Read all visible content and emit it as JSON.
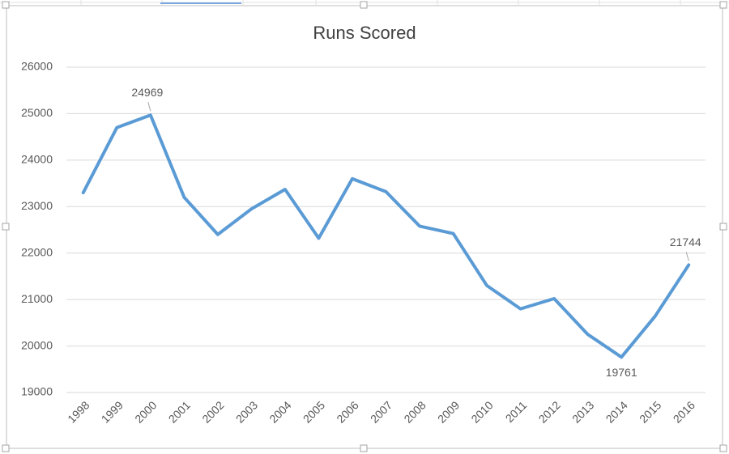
{
  "chart_data": {
    "type": "line",
    "title": "Runs Scored",
    "categories": [
      "1998",
      "1999",
      "2000",
      "2001",
      "2002",
      "2003",
      "2004",
      "2005",
      "2006",
      "2007",
      "2008",
      "2009",
      "2010",
      "2011",
      "2012",
      "2013",
      "2014",
      "2015",
      "2016"
    ],
    "series": [
      {
        "name": "Runs Scored",
        "color": "#5b9bd5",
        "values": [
          23300,
          24700,
          24969,
          23200,
          22400,
          22950,
          23370,
          22320,
          23600,
          23320,
          22580,
          22420,
          21300,
          20800,
          21020,
          20250,
          19761,
          20640,
          21744
        ],
        "value_labels": [
          null,
          null,
          "24969",
          null,
          null,
          null,
          null,
          null,
          null,
          null,
          null,
          null,
          null,
          null,
          null,
          null,
          "19761",
          null,
          "21744"
        ]
      }
    ],
    "ylim": [
      19000,
      26000
    ],
    "yticks": [
      19000,
      20000,
      21000,
      22000,
      23000,
      24000,
      25000,
      26000
    ],
    "grid": true
  }
}
